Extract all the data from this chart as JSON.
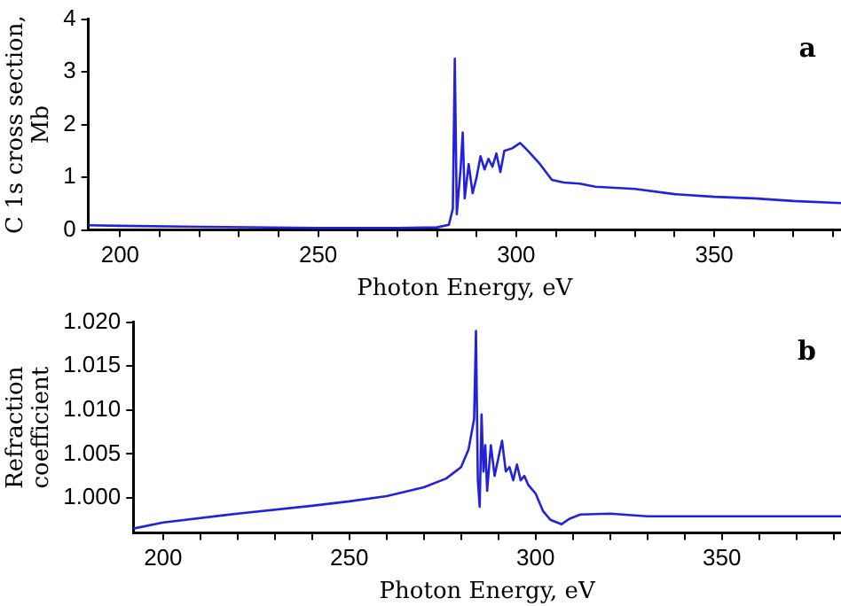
{
  "chart_data": [
    {
      "type": "line",
      "xlabel": "Photon Energy, eV",
      "ylabel": "C 1s cross section, Mb",
      "annotations": [
        "a"
      ],
      "grid": false,
      "legend": false,
      "marker": "none",
      "line_style": "solid",
      "xlim": [
        192,
        382
      ],
      "xticks": [
        200,
        {
          "value": 210,
          "label": null
        },
        {
          "value": 220,
          "label": null
        },
        {
          "value": 230,
          "label": null
        },
        {
          "value": 240,
          "label": null
        },
        250,
        {
          "value": 260,
          "label": null
        },
        {
          "value": 270,
          "label": null
        },
        {
          "value": 280,
          "label": null
        },
        {
          "value": 290,
          "label": null
        },
        300,
        {
          "value": 310,
          "label": null
        },
        {
          "value": 320,
          "label": null
        },
        {
          "value": 330,
          "label": null
        },
        {
          "value": 340,
          "label": null
        },
        350,
        {
          "value": 360,
          "label": null
        },
        {
          "value": 370,
          "label": null
        },
        {
          "value": 380,
          "label": null
        }
      ],
      "ylim": [
        0,
        4
      ],
      "yticks": [
        0,
        1,
        2,
        3,
        4
      ],
      "series": [
        {
          "color": "#2222dd",
          "x": [
            192,
            200,
            220,
            250,
            270,
            280,
            283,
            284,
            284.5,
            285,
            286,
            286.5,
            287,
            288,
            289,
            290,
            291,
            292,
            293,
            294,
            295,
            296,
            297,
            299,
            301,
            303,
            306,
            309,
            312,
            316,
            320,
            330,
            340,
            350,
            360,
            370,
            382
          ],
          "values": [
            0.09,
            0.08,
            0.06,
            0.04,
            0.04,
            0.05,
            0.1,
            0.4,
            3.25,
            0.3,
            1.2,
            1.85,
            0.6,
            1.25,
            0.7,
            1.0,
            1.4,
            1.15,
            1.35,
            1.2,
            1.45,
            1.1,
            1.5,
            1.55,
            1.65,
            1.5,
            1.25,
            0.95,
            0.9,
            0.88,
            0.82,
            0.78,
            0.68,
            0.63,
            0.6,
            0.55,
            0.51
          ]
        }
      ]
    },
    {
      "type": "line",
      "xlabel": "Photon Energy, eV",
      "ylabel": "Refraction coefficient",
      "annotations": [
        "b"
      ],
      "grid": false,
      "legend": false,
      "marker": "none",
      "line_style": "solid",
      "xlim": [
        192,
        382
      ],
      "xticks": [
        200,
        {
          "value": 210,
          "label": null
        },
        {
          "value": 220,
          "label": null
        },
        {
          "value": 230,
          "label": null
        },
        {
          "value": 240,
          "label": null
        },
        250,
        {
          "value": 260,
          "label": null
        },
        {
          "value": 270,
          "label": null
        },
        {
          "value": 280,
          "label": null
        },
        {
          "value": 290,
          "label": null
        },
        300,
        {
          "value": 310,
          "label": null
        },
        {
          "value": 320,
          "label": null
        },
        {
          "value": 330,
          "label": null
        },
        {
          "value": 340,
          "label": null
        },
        350,
        {
          "value": 360,
          "label": null
        },
        {
          "value": 370,
          "label": null
        },
        {
          "value": 380,
          "label": null
        }
      ],
      "ylim": [
        0.996,
        1.02
      ],
      "yticks": [
        {
          "value": 1,
          "label": "1.000"
        },
        {
          "value": 1.005,
          "label": "1.005"
        },
        {
          "value": 1.01,
          "label": "1.010"
        },
        {
          "value": 1.015,
          "label": "1.015"
        },
        {
          "value": 1.02,
          "label": "1.020"
        }
      ],
      "series": [
        {
          "color": "#2222dd",
          "x": [
            192,
            200,
            220,
            240,
            250,
            260,
            270,
            276,
            280,
            282,
            283.5,
            284,
            284.5,
            285,
            285.5,
            286,
            286.5,
            287,
            288,
            289,
            290,
            291,
            292,
            293,
            294,
            295,
            296,
            297,
            298,
            300,
            302,
            304,
            307,
            309,
            312,
            320,
            330,
            340,
            360,
            382
          ],
          "values": [
            0.9965,
            0.9972,
            0.9982,
            0.9991,
            0.9996,
            1.0002,
            1.0012,
            1.0022,
            1.0035,
            1.0055,
            1.009,
            1.019,
            1.002,
            0.999,
            1.0095,
            1.003,
            1.006,
            1.0008,
            1.006,
            1.0025,
            1.0045,
            1.0065,
            1.003,
            1.0035,
            1.002,
            1.0038,
            1.002,
            1.0025,
            1.0015,
            1.0005,
            0.9985,
            0.9975,
            0.997,
            0.9976,
            0.9981,
            0.9982,
            0.9979,
            0.9979,
            0.9979,
            0.9979
          ]
        }
      ]
    }
  ]
}
